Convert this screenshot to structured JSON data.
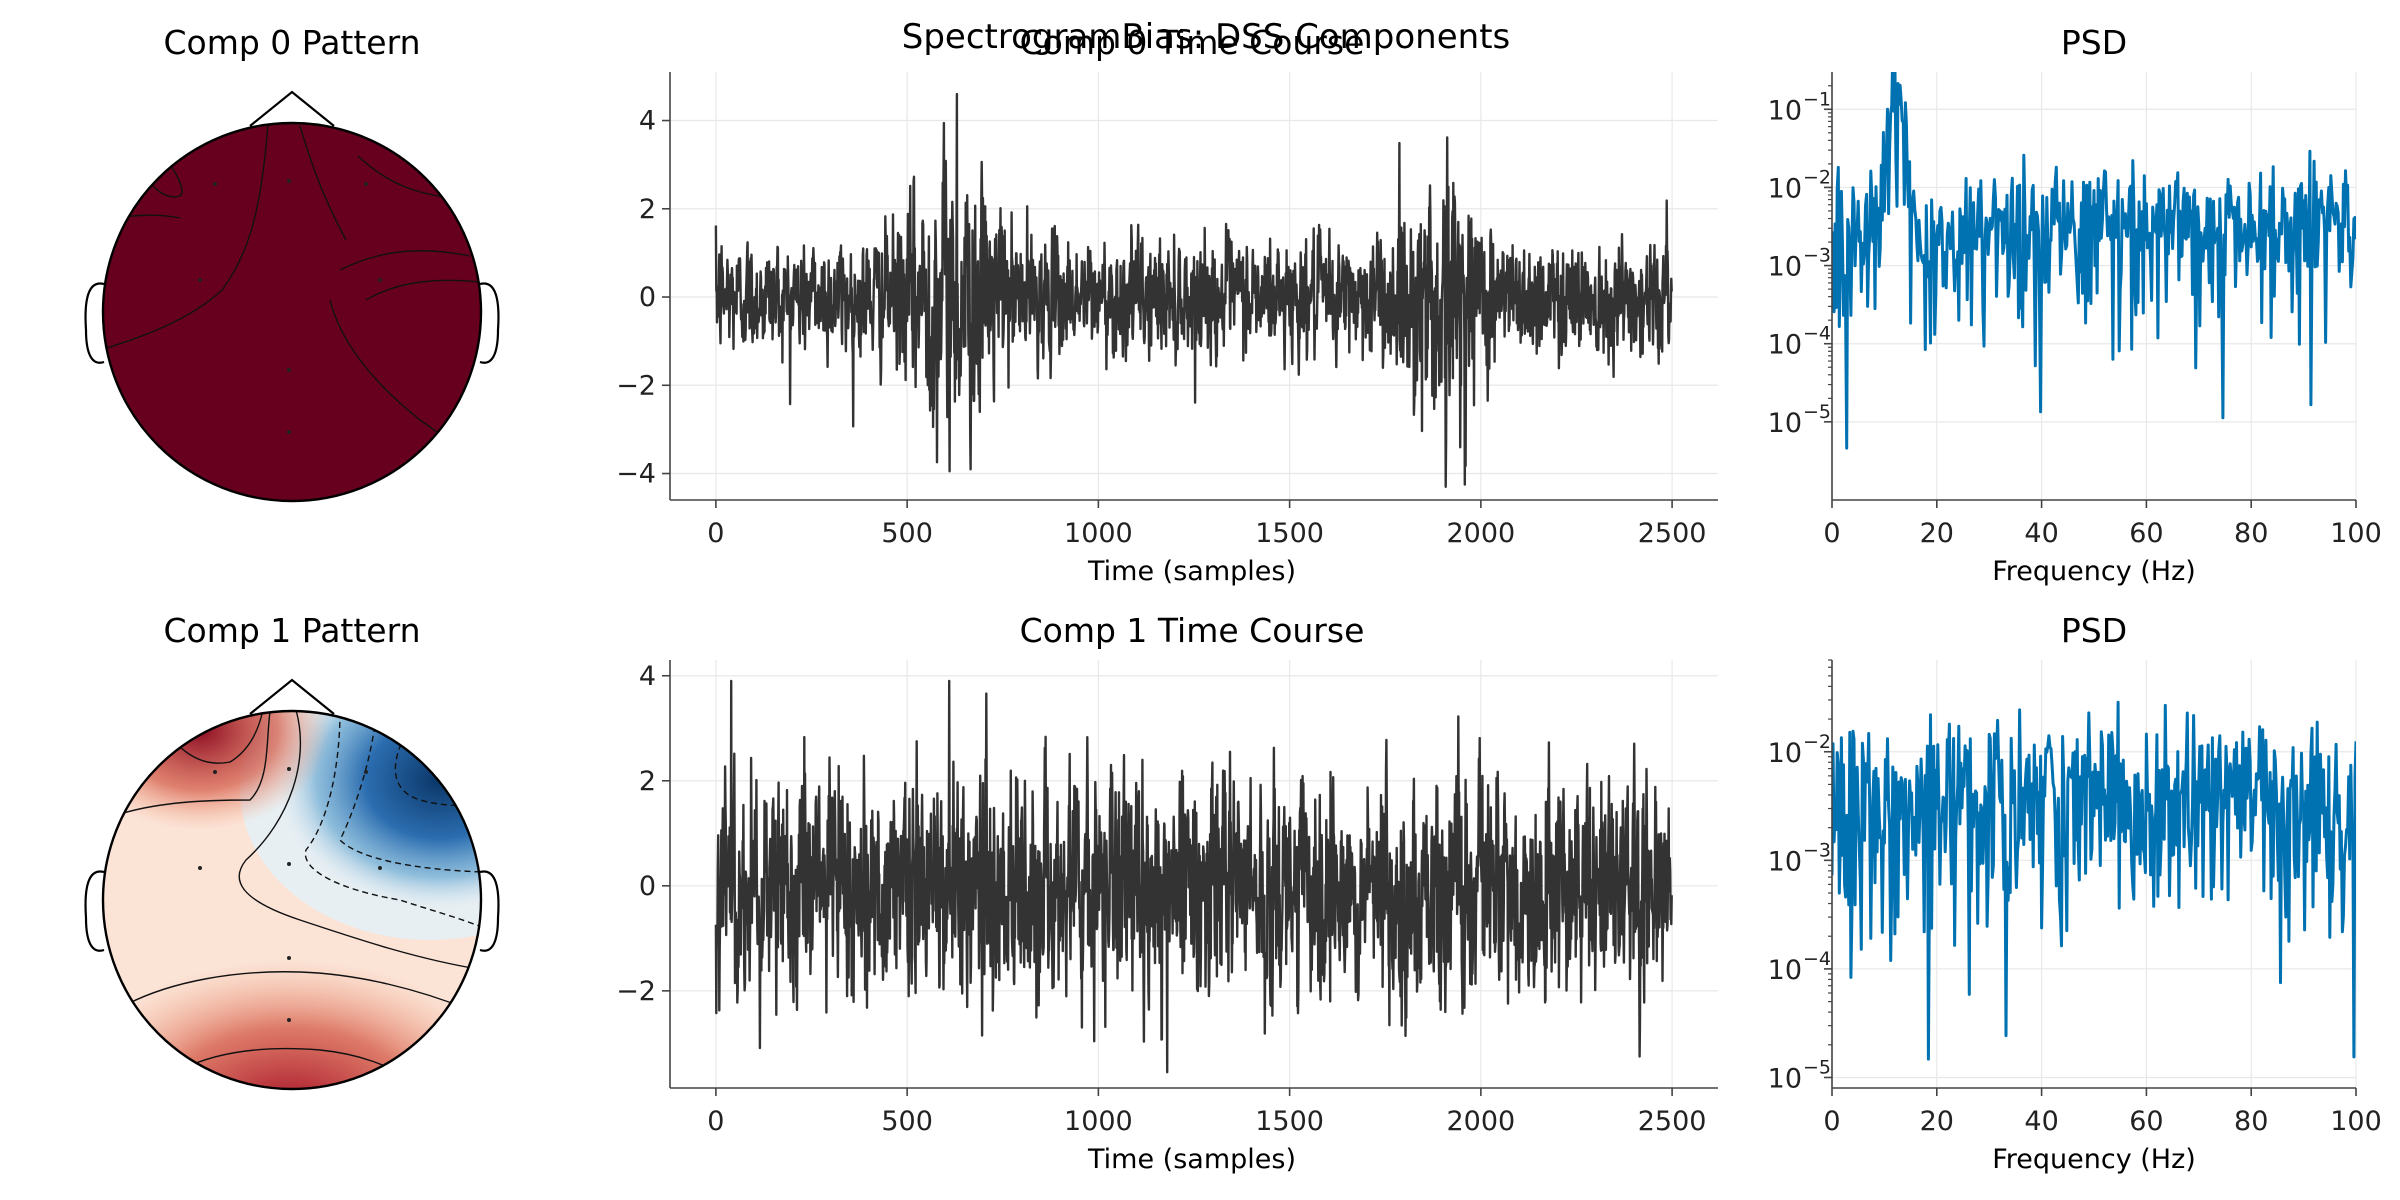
{
  "suptitle": "SpectrogramBias: DSS Components",
  "colors": {
    "timecourse": "#333333",
    "psd": "#0072b2",
    "grid": "#e8e8e8",
    "axis": "#444444",
    "topo_red": "#67001f",
    "topo_blue": "#053061"
  },
  "components": [
    {
      "pattern_title": "Comp 0 Pattern",
      "time_title": "Comp 0 Time Course",
      "psd_title": "PSD",
      "time_xlabel": "Time (samples)",
      "psd_xlabel": "Frequency (Hz)",
      "time_xticks": [
        "0",
        "500",
        "1000",
        "1500",
        "2000",
        "2500"
      ],
      "time_yticks": [
        "4",
        "2",
        "0",
        "−2",
        "−4"
      ],
      "psd_xticks": [
        "0",
        "20",
        "40",
        "60",
        "80",
        "100"
      ],
      "psd_yticks": [
        {
          "base": "10",
          "exp": "−1"
        },
        {
          "base": "10",
          "exp": "−2"
        },
        {
          "base": "10",
          "exp": "−3"
        },
        {
          "base": "10",
          "exp": "−4"
        },
        {
          "base": "10",
          "exp": "−5"
        }
      ]
    },
    {
      "pattern_title": "Comp 1 Pattern",
      "time_title": "Comp 1 Time Course",
      "psd_title": "PSD",
      "time_xlabel": "Time (samples)",
      "psd_xlabel": "Frequency (Hz)",
      "time_xticks": [
        "0",
        "500",
        "1000",
        "1500",
        "2000",
        "2500"
      ],
      "time_yticks": [
        "4",
        "2",
        "0",
        "−2"
      ],
      "psd_xticks": [
        "0",
        "20",
        "40",
        "60",
        "80",
        "100"
      ],
      "psd_yticks": [
        {
          "base": "10",
          "exp": "−2"
        },
        {
          "base": "10",
          "exp": "−3"
        },
        {
          "base": "10",
          "exp": "−4"
        },
        {
          "base": "10",
          "exp": "−5"
        }
      ]
    }
  ],
  "chart_data": [
    {
      "type": "heatmap",
      "subtype": "topomap",
      "title": "Comp 0 Pattern",
      "colormap": "RdBu_r",
      "note_values": "uniformly strong positive weights across the scalp",
      "sensors": 7
    },
    {
      "type": "line",
      "title": "Comp 0 Time Course",
      "xlabel": "Time (samples)",
      "xlim": [
        -120,
        2620
      ],
      "ylim": [
        -4.6,
        5.1
      ],
      "n_samples": 2500,
      "amplitude_std": 0.8,
      "bursts": [
        {
          "center": 620,
          "width": 120,
          "peak": 4.6
        },
        {
          "center": 1900,
          "width": 110,
          "peak": -4.3
        }
      ],
      "max": 4.65,
      "min": -4.25
    },
    {
      "type": "line",
      "title": "PSD",
      "xlabel": "Frequency (Hz)",
      "xlim": [
        0,
        100
      ],
      "yscale": "log",
      "ylim": [
        1e-06,
        0.3
      ],
      "peak": {
        "frequency": 12,
        "power": 0.17
      },
      "baseline_power": 0.004,
      "min": 2e-06
    },
    {
      "type": "heatmap",
      "subtype": "topomap",
      "title": "Comp 1 Pattern",
      "colormap": "RdBu_r",
      "note_values": "positive (red) left-frontal and posterior, negative (blue) right-frontal",
      "sensors": 7
    },
    {
      "type": "line",
      "title": "Comp 1 Time Course",
      "xlabel": "Time (samples)",
      "xlim": [
        -120,
        2620
      ],
      "ylim": [
        -3.85,
        4.3
      ],
      "n_samples": 2500,
      "amplitude_std": 0.95,
      "max": 3.9,
      "min": -3.55
    },
    {
      "type": "line",
      "title": "PSD",
      "xlabel": "Frequency (Hz)",
      "xlim": [
        0,
        100
      ],
      "yscale": "log",
      "ylim": [
        8e-06,
        0.07
      ],
      "baseline_power": 0.005,
      "min": 1.1e-05,
      "max": 0.05
    }
  ]
}
